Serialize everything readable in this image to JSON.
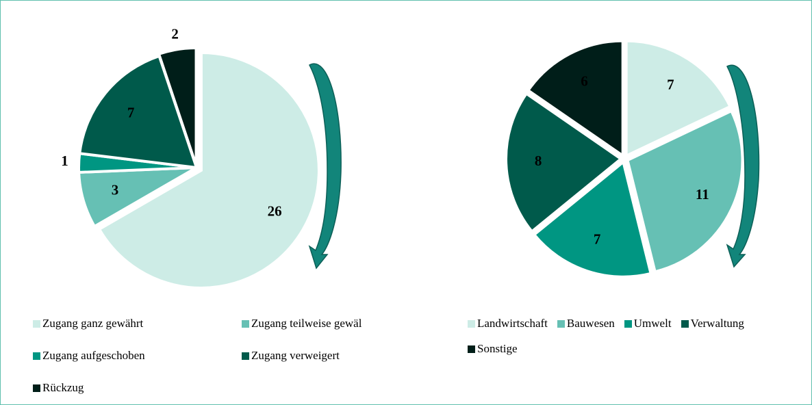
{
  "chart_data": [
    {
      "type": "pie",
      "categories": [
        "Zugang ganz gewährt",
        "Zugang teilweise gewäl",
        "Zugang aufgeschoben",
        "Zugang verweigert",
        "Rückzug"
      ],
      "values": [
        26,
        3,
        1,
        7,
        2
      ],
      "colors": [
        "#cdece6",
        "#66c0b4",
        "#009682",
        "#005a4b",
        "#001e19"
      ]
    },
    {
      "type": "pie",
      "categories": [
        "Landwirtschaft",
        "Bauwesen",
        "Umwelt",
        "Verwaltung",
        "Sonstige"
      ],
      "values": [
        7,
        11,
        7,
        8,
        6
      ],
      "colors": [
        "#cdece6",
        "#66c0b4",
        "#009682",
        "#005a4b",
        "#001e19"
      ]
    }
  ]
}
